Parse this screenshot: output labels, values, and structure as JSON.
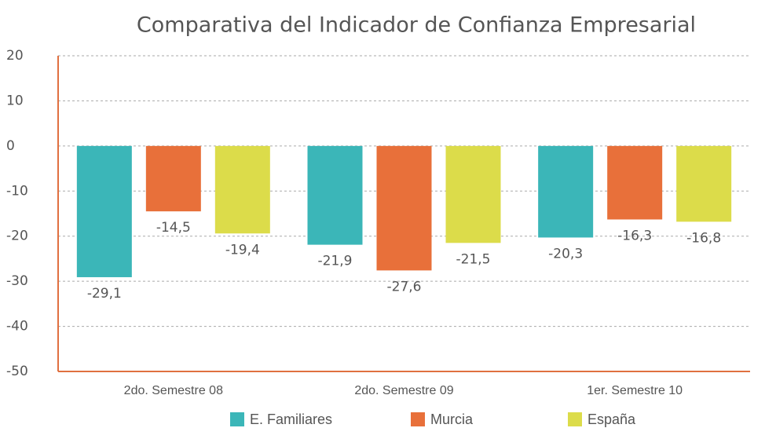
{
  "chart_data": {
    "type": "bar",
    "title": "Comparativa del Indicador de Confianza Empresarial",
    "categories": [
      "2do. Semestre 08",
      "2do. Semestre 09",
      "1er. Semestre 10"
    ],
    "series": [
      {
        "name": "E. Familiares",
        "color": "#3bb6b8",
        "values": [
          -29.1,
          -21.9,
          -20.3
        ],
        "value_labels": [
          "-29,1",
          "-21,9",
          "-20,3"
        ]
      },
      {
        "name": "Murcia",
        "color": "#e8703a",
        "values": [
          -14.5,
          -27.6,
          -16.3
        ],
        "value_labels": [
          "-14,5",
          "-27,6",
          "-16,3"
        ]
      },
      {
        "name": "España",
        "color": "#dcdc4a",
        "values": [
          -19.4,
          -21.5,
          -16.8
        ],
        "value_labels": [
          "-19,4",
          "-21,5",
          "-16,8"
        ]
      }
    ],
    "ylim": [
      -50,
      20
    ],
    "yticks": [
      -50,
      -40,
      -30,
      -20,
      -10,
      0,
      10,
      20
    ],
    "grid": true
  }
}
